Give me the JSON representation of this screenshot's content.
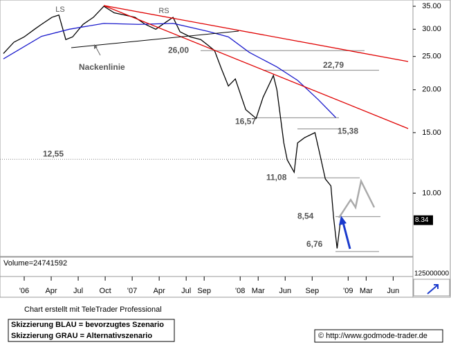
{
  "chart_data": {
    "type": "line",
    "log_y": true,
    "xlim": [
      -2.69,
      43.2
    ],
    "ylim": [
      6.57,
      36.5
    ],
    "xticks": [
      {
        "value": 0,
        "label": "'06"
      },
      {
        "value": 3,
        "label": "Apr"
      },
      {
        "value": 6,
        "label": "Jul"
      },
      {
        "value": 9,
        "label": "Oct"
      },
      {
        "value": 12,
        "label": "'07"
      },
      {
        "value": 15,
        "label": "Apr"
      },
      {
        "value": 18,
        "label": "Jul"
      },
      {
        "value": 20,
        "label": "Sep"
      },
      {
        "value": 24,
        "label": "'08"
      },
      {
        "value": 26,
        "label": "Mar"
      },
      {
        "value": 29,
        "label": "Jun"
      },
      {
        "value": 32,
        "label": "Sep"
      },
      {
        "value": 36,
        "label": "'09"
      },
      {
        "value": 38,
        "label": "Mar"
      },
      {
        "value": 41,
        "label": "Jun"
      }
    ],
    "yticks": [
      {
        "value": 10,
        "label": "10.00"
      },
      {
        "value": 15,
        "label": "15.00"
      },
      {
        "value": 20,
        "label": "20.00"
      },
      {
        "value": 25,
        "label": "25.00"
      },
      {
        "value": 30,
        "label": "30.00"
      },
      {
        "value": 35,
        "label": "35.00"
      }
    ],
    "series": [
      {
        "color": "#000000",
        "x": [
          -2.31,
          -1.15,
          0,
          1.15,
          1.92,
          3.08,
          3.85,
          4.62,
          5.38,
          6.54,
          7.69,
          8.85,
          10,
          11.15,
          12.31,
          13.46,
          14.62,
          15.77,
          16.54,
          17.31,
          18.46,
          19.62,
          20.38,
          21.15,
          21.92,
          22.69,
          23.46,
          24.62,
          25.77,
          26.54,
          27.69,
          28.08,
          28.85,
          29.23,
          30,
          30.38,
          31.15,
          32.31,
          32.85,
          33.46,
          34.08,
          34.38,
          34.77,
          35.15
        ],
        "values": [
          25.5,
          27.5,
          28.5,
          30,
          31,
          32.5,
          33,
          28,
          28.5,
          31,
          32.5,
          35,
          33.5,
          33,
          32.5,
          31,
          30,
          31.5,
          32.5,
          29.5,
          28.5,
          28,
          27,
          26,
          23,
          20.5,
          21.5,
          17.5,
          16.5,
          19,
          22,
          20,
          14,
          12.5,
          11.5,
          14,
          14.5,
          15,
          13,
          11,
          10.5,
          8.5,
          6.9,
          8.3
        ]
      },
      {
        "color": "#1a1acc",
        "x": [
          -2.31,
          1.92,
          5,
          8.85,
          12.69,
          16.54,
          20.38,
          22.69,
          25,
          28.08,
          30.38,
          32.69,
          34.62
        ],
        "values": [
          24.6,
          28.6,
          30,
          31.2,
          31,
          31.2,
          29.6,
          28.5,
          25.7,
          23.3,
          21.3,
          18.7,
          16.6
        ]
      }
    ],
    "levels": [
      {
        "value": 26,
        "label": "26,00"
      },
      {
        "value": 22.79,
        "label": "22,79"
      },
      {
        "value": 16.57,
        "label": "16,57"
      },
      {
        "value": 15.38,
        "label": "15,38"
      },
      {
        "value": 12.55,
        "label": "12,55"
      },
      {
        "value": 11.08,
        "label": "11,08"
      },
      {
        "value": 8.54,
        "label": "8,54"
      },
      {
        "value": 6.76,
        "label": "6,76"
      }
    ],
    "last_price": {
      "value": 8.34,
      "label": "8.34"
    },
    "annotations": {
      "ls": "LS",
      "rs": "RS",
      "neckline": "Nackenlinie"
    },
    "volume_label": "Volume=24741592",
    "volume_tick": {
      "value": 125000000,
      "label": "125000000"
    },
    "credit": "Chart erstellt mit TeleTrader Professional",
    "legend_blue": "Skizzierung BLAU = bevorzugtes Szenario",
    "legend_gray": "Skizzierung GRAU = Alternativszenario",
    "source": "© http://www.godmode-trader.de"
  }
}
